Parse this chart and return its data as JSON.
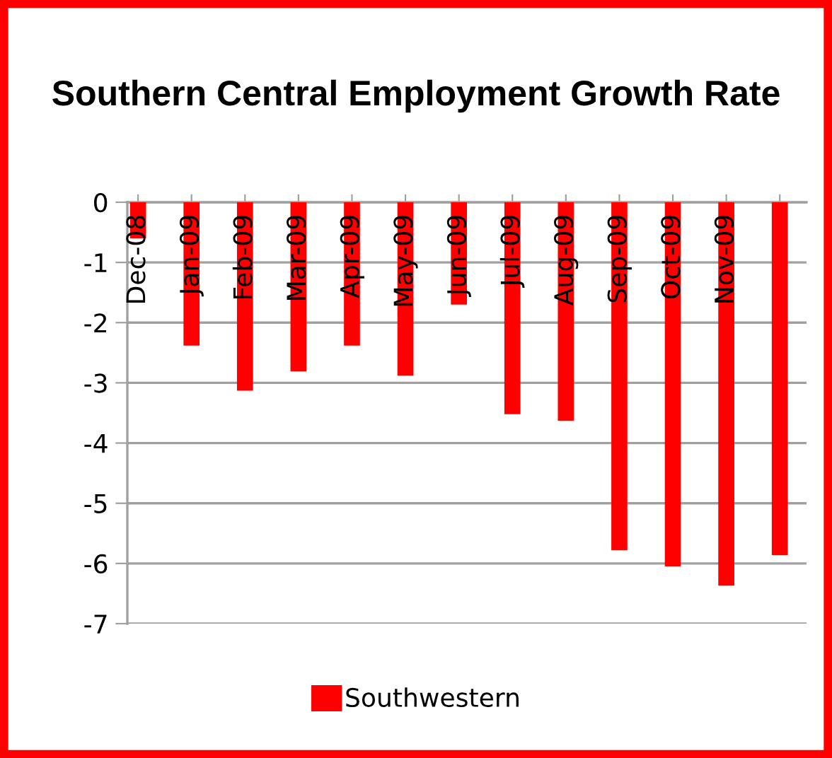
{
  "chart_data": {
    "type": "bar",
    "title": "Southern Central Employment Growth Rate",
    "categories": [
      "Dec-08",
      "Jan-09",
      "Feb-09",
      "Mar-09",
      "Apr-09",
      "May-09",
      "Jun-09",
      "Jul-09",
      "Aug-09",
      "Sep-09",
      "Oct-09",
      "Nov-09",
      null
    ],
    "series": [
      {
        "name": "Southwestern",
        "color": "#ff0000",
        "values": [
          -0.6,
          -2.38,
          -3.13,
          -2.81,
          -2.38,
          -2.88,
          -1.7,
          -3.52,
          -3.63,
          -5.78,
          -6.05,
          -6.37,
          -5.86
        ]
      }
    ],
    "ylim": [
      -7,
      0
    ],
    "yticks": [
      -7,
      -6,
      -5,
      -4,
      -3,
      -2,
      -1,
      0
    ],
    "grid": "y",
    "legend": "bottom"
  }
}
